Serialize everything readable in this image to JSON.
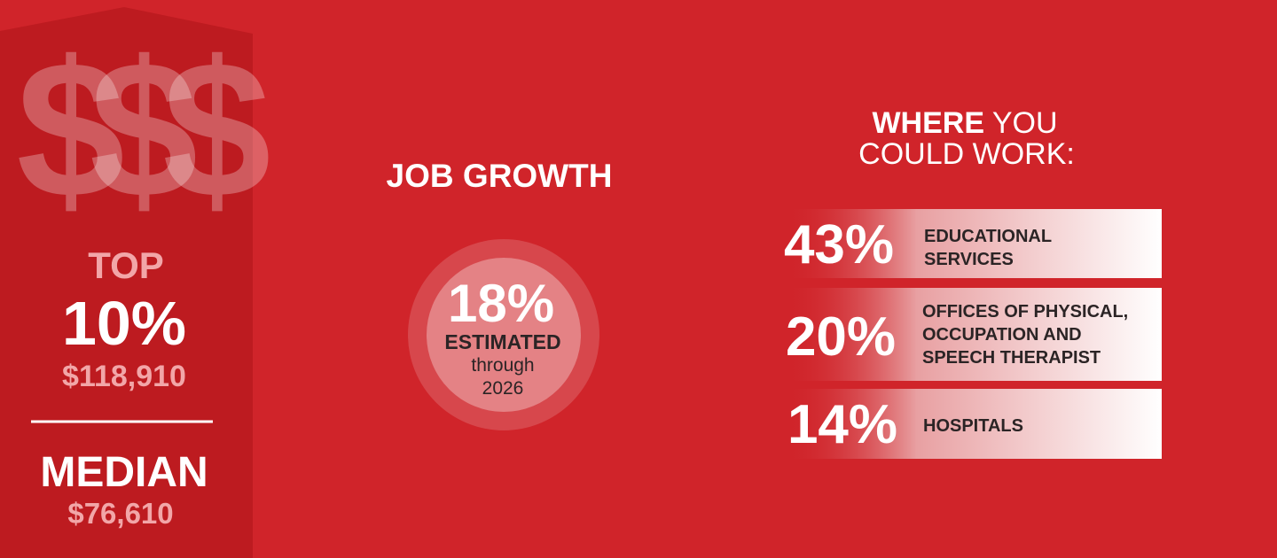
{
  "salary": {
    "icon": "$$$",
    "top_label": "TOP",
    "top_value": "10%",
    "top_amount": "$118,910",
    "median_label": "MEDIAN",
    "median_amount": "$76,610"
  },
  "job_growth": {
    "title": "JOB GROWTH",
    "value": "18%",
    "label": "ESTIMATED",
    "sub": "through",
    "year": "2026"
  },
  "workplaces": {
    "title_bold": "WHERE",
    "title_rest": "YOU",
    "title_line2": "COULD WORK:",
    "items": [
      {
        "percent": "43%",
        "lines": [
          "EDUCATIONAL",
          "SERVICES"
        ]
      },
      {
        "percent": "20%",
        "lines": [
          "OFFICES OF PHYSICAL,",
          "OCCUPATION AND",
          "SPEECH THERAPIST"
        ]
      },
      {
        "percent": "14%",
        "lines": [
          "HOSPITALS"
        ]
      }
    ]
  }
}
